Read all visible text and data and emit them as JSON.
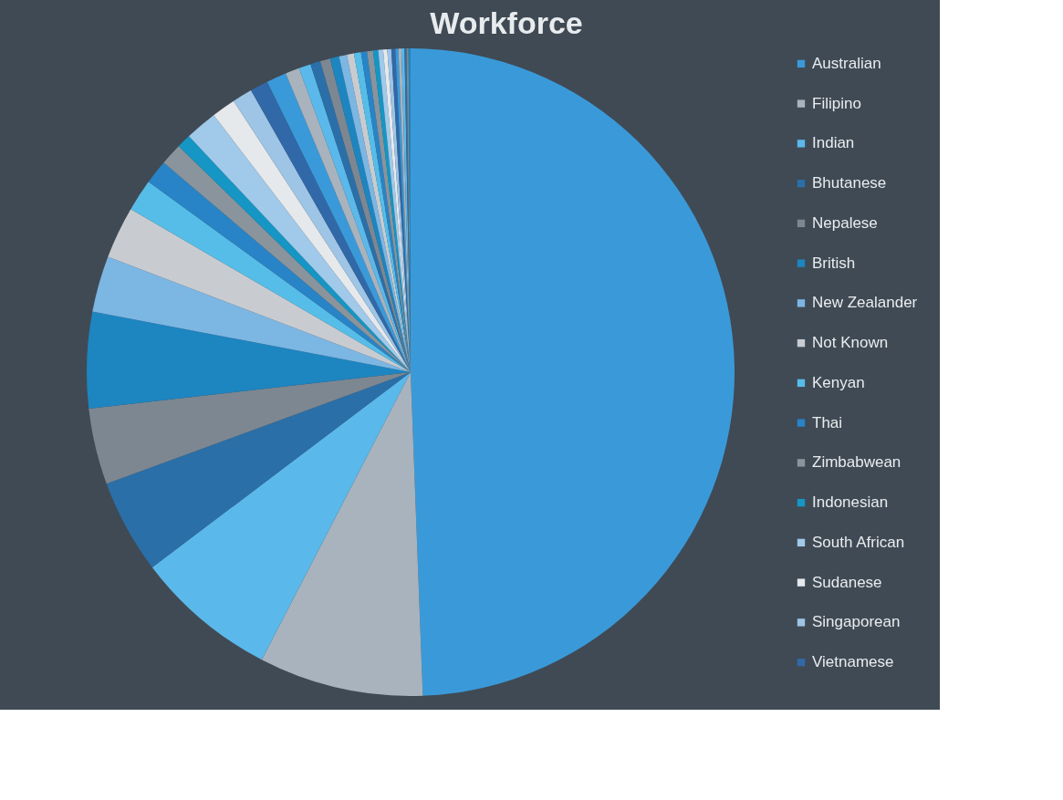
{
  "chart_data": {
    "type": "pie",
    "title": "Workforce",
    "legend": "right",
    "categories": [
      "Australian",
      "Filipino",
      "Indian",
      "Bhutanese",
      "Nepalese",
      "British",
      "New Zealander",
      "Not Known",
      "Kenyan",
      "Thai",
      "Zimbabwean",
      "Indonesian",
      "South African",
      "Sudanese",
      "Singaporean",
      "Vietnamese",
      null,
      null,
      null,
      null,
      null,
      null,
      null,
      null,
      null,
      null,
      null,
      null,
      null,
      null,
      null,
      null,
      null,
      null,
      null,
      null,
      null,
      null
    ],
    "values": [
      49.4,
      8.2,
      7.1,
      4.7,
      3.8,
      4.8,
      2.8,
      2.6,
      1.6,
      1.2,
      1.1,
      0.7,
      1.6,
      1.2,
      1.0,
      0.9,
      1.0,
      0.7,
      0.6,
      0.5,
      0.5,
      0.45,
      0.4,
      0.35,
      0.35,
      0.3,
      0.3,
      0.25,
      0.25,
      0.2,
      0.2,
      0.2,
      0.15,
      0.15,
      0.15,
      0.1,
      0.1,
      0.1
    ],
    "colors": [
      "#3a9ad9",
      "#a9b3bd",
      "#5bb8ea",
      "#2a6fa8",
      "#7d8791",
      "#1d85c0",
      "#7cb6e3",
      "#c8ccd0",
      "#56bde8",
      "#2884c6",
      "#8a949c",
      "#1596c4",
      "#a0c9ea",
      "#e6e9ec",
      "#9ec5e5",
      "#3168a8",
      "#3a9ad9",
      "#a9b3bd",
      "#5bb8ea",
      "#2a6fa8",
      "#7d8791",
      "#1d85c0",
      "#7cb6e3",
      "#c8ccd0",
      "#56bde8",
      "#2884c6",
      "#8a949c",
      "#1596c4",
      "#a0c9ea",
      "#e6e9ec",
      "#9ec5e5",
      "#3168a8",
      "#3a9ad9",
      "#a9b3bd",
      "#5bb8ea",
      "#2a6fa8",
      "#7d8791",
      "#1d85c0"
    ]
  }
}
